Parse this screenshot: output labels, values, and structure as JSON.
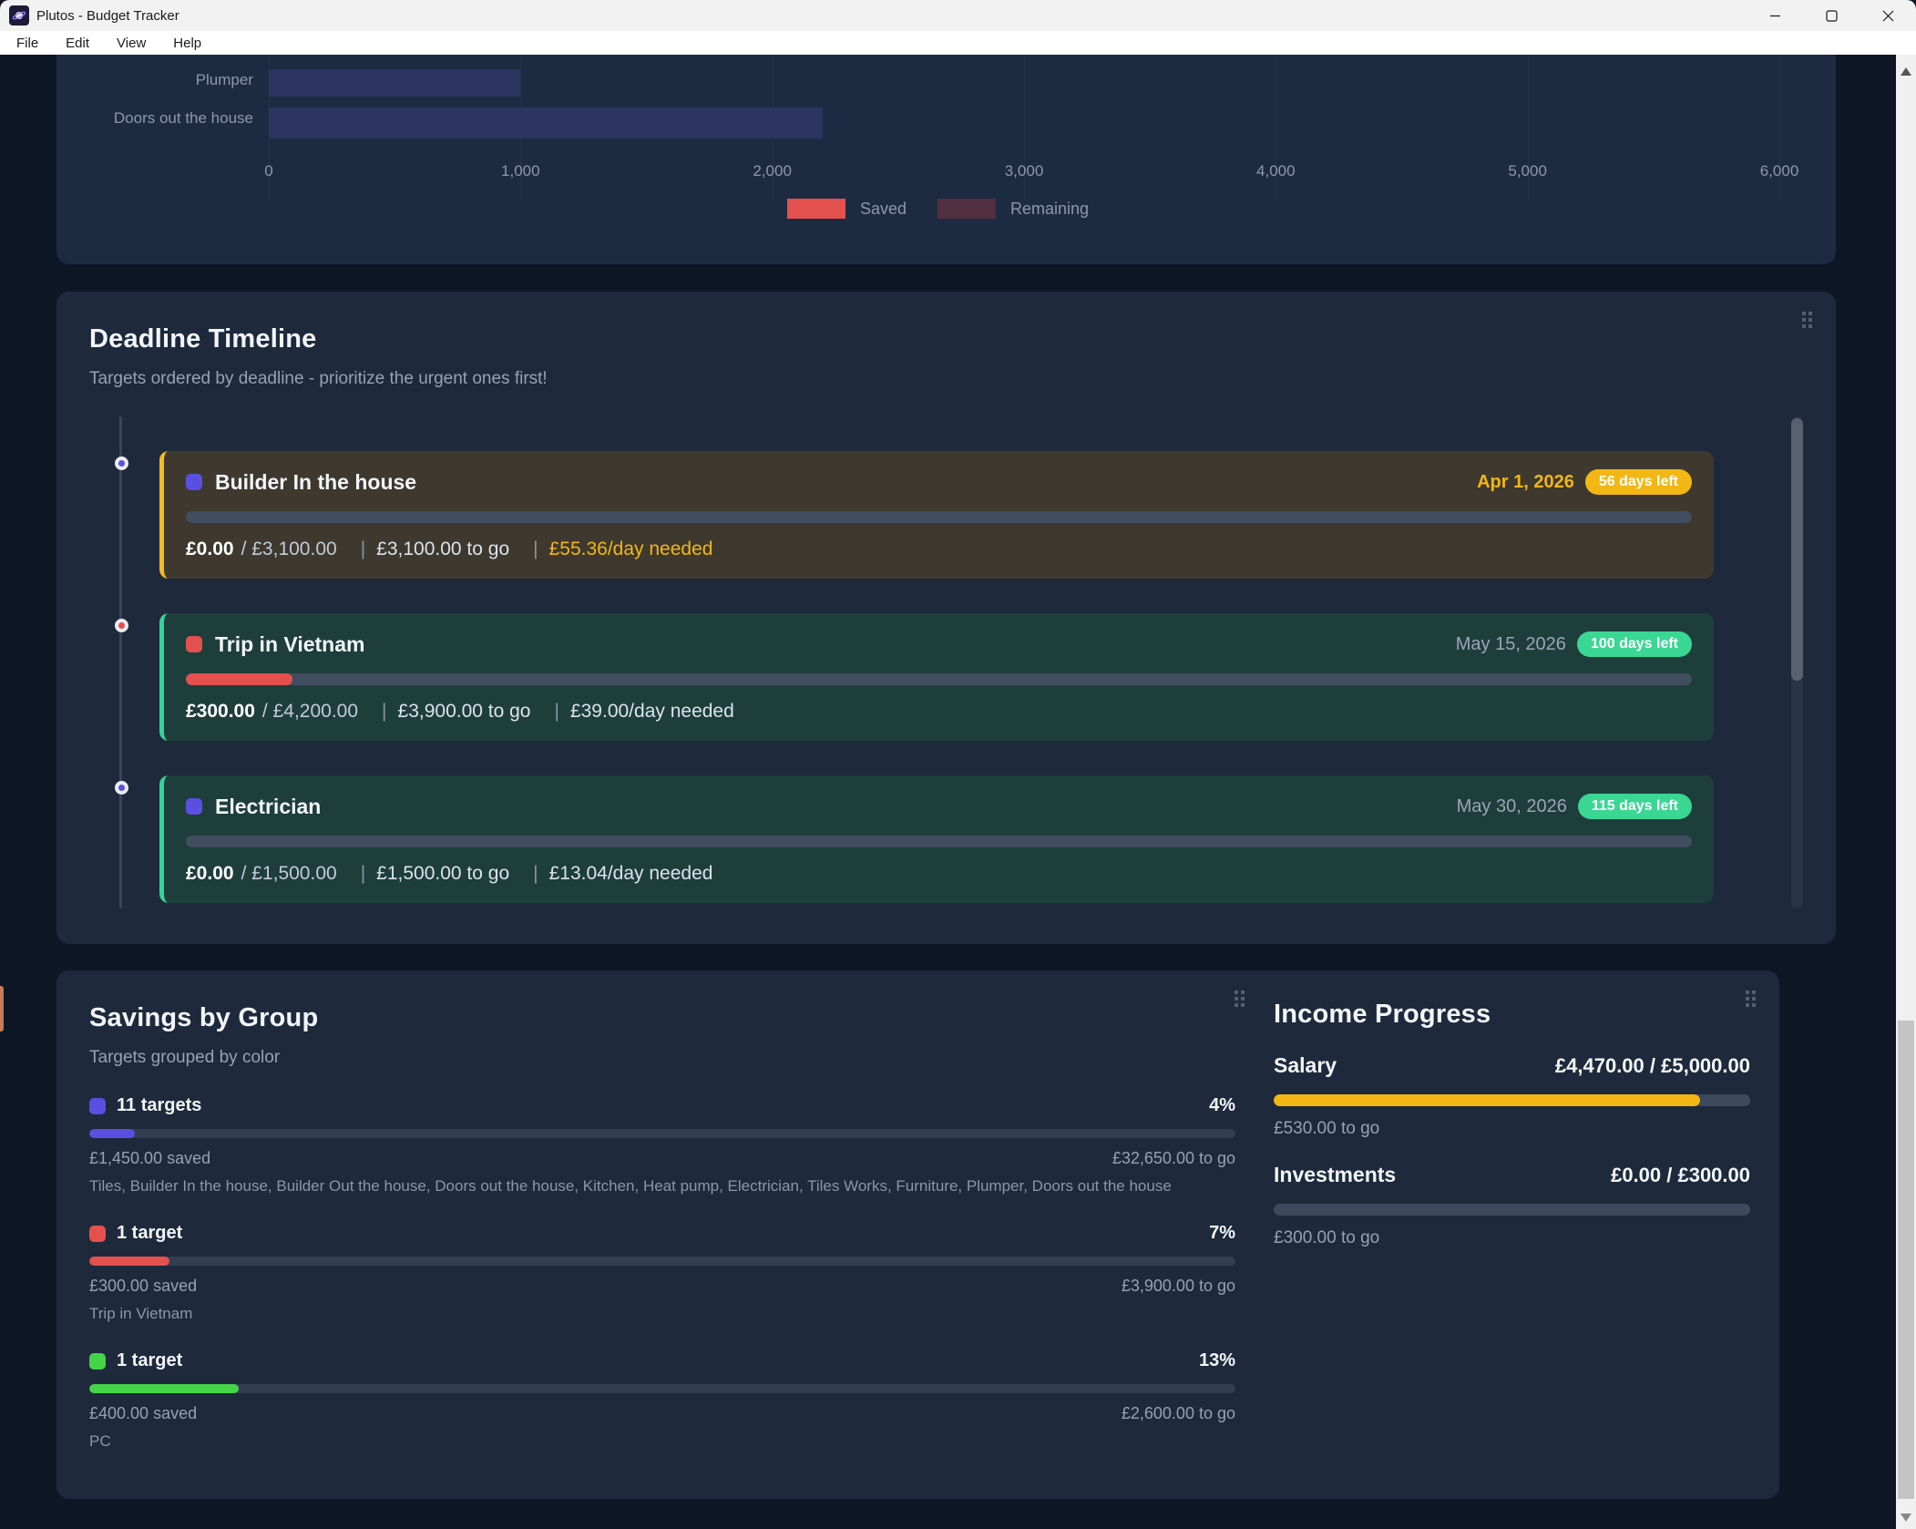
{
  "window": {
    "title": "Plutos - Budget Tracker"
  },
  "menu": {
    "items": [
      "File",
      "Edit",
      "View",
      "Help"
    ]
  },
  "ui": {
    "pipe": "|",
    "slash": "/"
  },
  "colors": {
    "accent_indigo": "#5a4fe0",
    "red": "#e4504e",
    "green_badge": "#3ad694",
    "lime_green": "#45d348",
    "amber": "#f2b714",
    "maroon": "#512f3e",
    "bar_navy": "#2c3462",
    "card_bg": "#1e293b",
    "page_bg": "#0e1726"
  },
  "chart_data": {
    "type": "bar",
    "orientation": "horizontal",
    "note": "top of chart cut off by scroll; bars are remaining amounts per target",
    "categories": [
      "Plumper",
      "Doors out the house"
    ],
    "values": [
      1000,
      2200
    ],
    "xlim": [
      0,
      6000
    ],
    "xticks": [
      "0",
      "1,000",
      "2,000",
      "3,000",
      "4,000",
      "5,000",
      "6,000"
    ],
    "bar_color": "#2c3462",
    "legend": [
      {
        "label": "Saved",
        "color": "#e4504e"
      },
      {
        "label": "Remaining",
        "color": "#512f3e"
      }
    ],
    "legend_position": "bottom-center",
    "grid": true
  },
  "timeline": {
    "title": "Deadline Timeline",
    "subtitle": "Targets ordered by deadline - prioritize the urgent ones first!",
    "items": [
      {
        "name": "Builder In the house",
        "chip_color": "#5a4fe0",
        "dot_color": "#5a4fe0",
        "date": "Apr 1, 2026",
        "badge": "56 days left",
        "badge_color": "#f2b714",
        "saved": "£0.00",
        "target": "£3,100.00",
        "to_go": "£3,100.00 to go",
        "per_day": "£55.36/day needed",
        "progress_pct": 0,
        "fill_color": "#5a4fe0"
      },
      {
        "name": "Trip in Vietnam",
        "chip_color": "#e4504e",
        "dot_color": "#e4504e",
        "date": "May 15, 2026",
        "badge": "100 days left",
        "badge_color": "#3ad694",
        "saved": "£300.00",
        "target": "£4,200.00",
        "to_go": "£3,900.00 to go",
        "per_day": "£39.00/day needed",
        "progress_pct": 7.1,
        "fill_color": "#e4504e"
      },
      {
        "name": "Electrician",
        "chip_color": "#5a4fe0",
        "dot_color": "#5a4fe0",
        "date": "May 30, 2026",
        "badge": "115 days left",
        "badge_color": "#3ad694",
        "saved": "£0.00",
        "target": "£1,500.00",
        "to_go": "£1,500.00 to go",
        "per_day": "£13.04/day needed",
        "progress_pct": 0,
        "fill_color": "#5a4fe0"
      }
    ]
  },
  "groups": {
    "title": "Savings by Group",
    "subtitle": "Targets grouped by color",
    "items": [
      {
        "label": "11 targets",
        "chip_color": "#5a4fe0",
        "pct_label": "4%",
        "pct": 4,
        "saved": "£1,450.00 saved",
        "to_go": "£32,650.00 to go",
        "targets": "Tiles, Builder In the house, Builder Out the house, Doors out the house, Kitchen, Heat pump, Electrician, Tiles Works, Furniture, Plumper, Doors out the house"
      },
      {
        "label": "1 target",
        "chip_color": "#e4504e",
        "pct_label": "7%",
        "pct": 7,
        "saved": "£300.00 saved",
        "to_go": "£3,900.00 to go",
        "targets": "Trip in Vietnam"
      },
      {
        "label": "1 target",
        "chip_color": "#45d348",
        "pct_label": "13%",
        "pct": 13,
        "saved": "£400.00 saved",
        "to_go": "£2,600.00 to go",
        "targets": "PC"
      }
    ]
  },
  "income": {
    "title": "Income Progress",
    "items": [
      {
        "label": "Salary",
        "value": "£4,470.00 / £5,000.00",
        "to_go": "£530.00 to go",
        "pct": 89.4,
        "fill_color": "#f2b714"
      },
      {
        "label": "Investments",
        "value": "£0.00 / £300.00",
        "to_go": "£300.00 to go",
        "pct": 0,
        "fill_color": "#f2b714"
      }
    ]
  }
}
